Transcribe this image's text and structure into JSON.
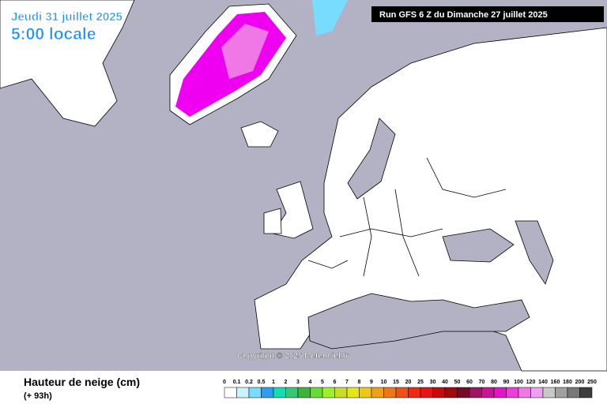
{
  "header": {
    "date": "Jeudi 31 juillet 2025",
    "time": "5:00 locale",
    "run": "Run GFS 6 Z du Dimanche 27 juillet 2025"
  },
  "copyright": "Copyright © 2025 Meteociel.fr",
  "legend": {
    "title": "Hauteur de neige (cm)",
    "subtitle": "(+ 93h)",
    "labels": [
      "0",
      "0.1",
      "0.2",
      "0.5",
      "1",
      "2",
      "3",
      "4",
      "5",
      "6",
      "7",
      "8",
      "9",
      "10",
      "15",
      "20",
      "25",
      "30",
      "40",
      "50",
      "60",
      "70",
      "80",
      "90",
      "100",
      "120",
      "140",
      "160",
      "180",
      "200",
      "250"
    ],
    "colors": [
      "#ffffff",
      "#c8f4ff",
      "#78dcff",
      "#2ca0f0",
      "#14dcb4",
      "#32c878",
      "#3cb43c",
      "#64dc32",
      "#a0f028",
      "#c8dc28",
      "#e6e614",
      "#f0c814",
      "#f0a014",
      "#f07814",
      "#f05014",
      "#f02814",
      "#e61414",
      "#c80a0a",
      "#a00a0a",
      "#780a28",
      "#a01464",
      "#c81496",
      "#e614c8",
      "#f03cdc",
      "#f078e6",
      "#f0a0f0",
      "#c8c8c8",
      "#a0a0a0",
      "#787878",
      "#3c3c3c"
    ]
  }
}
